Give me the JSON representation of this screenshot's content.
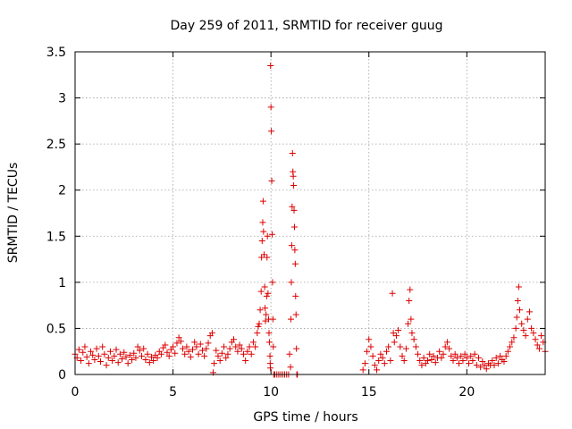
{
  "chart_data": {
    "type": "scatter",
    "title": "Day 259 of 2011, SRMTID for receiver guug",
    "xlabel": "GPS time / hours",
    "ylabel": "SRMTID / TECUs",
    "xlim": [
      0,
      24
    ],
    "ylim": [
      0,
      3.5
    ],
    "xticks": [
      0,
      5,
      10,
      15,
      20
    ],
    "xtick_labels": [
      "0",
      "5",
      "10",
      "15",
      "20"
    ],
    "yticks": [
      0,
      0.5,
      1,
      1.5,
      2,
      2.5,
      3,
      3.5
    ],
    "ytick_labels": [
      "0",
      "0.5",
      "1",
      "1.5",
      "2",
      "2.5",
      "3",
      "3.5"
    ],
    "grid": true,
    "marker": "+",
    "color": "#dd0000",
    "series": [
      {
        "name": "SRMTID",
        "points": [
          [
            0.0,
            0.22
          ],
          [
            0.1,
            0.18
          ],
          [
            0.2,
            0.27
          ],
          [
            0.3,
            0.15
          ],
          [
            0.4,
            0.24
          ],
          [
            0.5,
            0.3
          ],
          [
            0.6,
            0.19
          ],
          [
            0.7,
            0.12
          ],
          [
            0.8,
            0.25
          ],
          [
            0.9,
            0.21
          ],
          [
            1.0,
            0.16
          ],
          [
            1.1,
            0.28
          ],
          [
            1.2,
            0.2
          ],
          [
            1.3,
            0.14
          ],
          [
            1.4,
            0.3
          ],
          [
            1.5,
            0.22
          ],
          [
            1.6,
            0.1
          ],
          [
            1.7,
            0.18
          ],
          [
            1.8,
            0.25
          ],
          [
            1.9,
            0.15
          ],
          [
            2.0,
            0.2
          ],
          [
            2.1,
            0.27
          ],
          [
            2.2,
            0.13
          ],
          [
            2.3,
            0.22
          ],
          [
            2.4,
            0.17
          ],
          [
            2.5,
            0.24
          ],
          [
            2.6,
            0.19
          ],
          [
            2.7,
            0.12
          ],
          [
            2.8,
            0.21
          ],
          [
            2.9,
            0.16
          ],
          [
            3.0,
            0.23
          ],
          [
            3.1,
            0.18
          ],
          [
            3.2,
            0.3
          ],
          [
            3.3,
            0.26
          ],
          [
            3.4,
            0.2
          ],
          [
            3.5,
            0.28
          ],
          [
            3.6,
            0.16
          ],
          [
            3.7,
            0.22
          ],
          [
            3.8,
            0.13
          ],
          [
            3.9,
            0.19
          ],
          [
            4.0,
            0.15
          ],
          [
            4.1,
            0.21
          ],
          [
            4.2,
            0.18
          ],
          [
            4.3,
            0.25
          ],
          [
            4.4,
            0.22
          ],
          [
            4.5,
            0.29
          ],
          [
            4.6,
            0.32
          ],
          [
            4.7,
            0.24
          ],
          [
            4.8,
            0.2
          ],
          [
            4.9,
            0.27
          ],
          [
            5.0,
            0.3
          ],
          [
            5.1,
            0.23
          ],
          [
            5.2,
            0.34
          ],
          [
            5.3,
            0.4
          ],
          [
            5.4,
            0.36
          ],
          [
            5.5,
            0.28
          ],
          [
            5.6,
            0.22
          ],
          [
            5.7,
            0.3
          ],
          [
            5.8,
            0.25
          ],
          [
            5.9,
            0.19
          ],
          [
            6.0,
            0.27
          ],
          [
            6.1,
            0.35
          ],
          [
            6.2,
            0.3
          ],
          [
            6.3,
            0.22
          ],
          [
            6.4,
            0.33
          ],
          [
            6.5,
            0.26
          ],
          [
            6.6,
            0.2
          ],
          [
            6.7,
            0.28
          ],
          [
            6.8,
            0.34
          ],
          [
            6.9,
            0.42
          ],
          [
            7.0,
            0.45
          ],
          [
            7.05,
            0.02
          ],
          [
            7.1,
            0.12
          ],
          [
            7.2,
            0.26
          ],
          [
            7.3,
            0.2
          ],
          [
            7.4,
            0.15
          ],
          [
            7.5,
            0.23
          ],
          [
            7.6,
            0.3
          ],
          [
            7.7,
            0.18
          ],
          [
            7.8,
            0.22
          ],
          [
            7.9,
            0.28
          ],
          [
            8.0,
            0.35
          ],
          [
            8.1,
            0.38
          ],
          [
            8.2,
            0.3
          ],
          [
            8.3,
            0.25
          ],
          [
            8.4,
            0.32
          ],
          [
            8.5,
            0.28
          ],
          [
            8.6,
            0.22
          ],
          [
            8.7,
            0.15
          ],
          [
            8.8,
            0.25
          ],
          [
            8.9,
            0.3
          ],
          [
            9.0,
            0.22
          ],
          [
            9.1,
            0.35
          ],
          [
            9.2,
            0.3
          ],
          [
            9.3,
            0.45
          ],
          [
            9.35,
            0.52
          ],
          [
            9.4,
            0.55
          ],
          [
            9.45,
            0.7
          ],
          [
            9.5,
            0.9
          ],
          [
            9.52,
            1.27
          ],
          [
            9.55,
            1.45
          ],
          [
            9.58,
            1.65
          ],
          [
            9.6,
            1.88
          ],
          [
            9.62,
            1.55
          ],
          [
            9.65,
            1.3
          ],
          [
            9.68,
            0.95
          ],
          [
            9.7,
            0.72
          ],
          [
            9.72,
            0.58
          ],
          [
            9.75,
            0.65
          ],
          [
            9.78,
            0.85
          ],
          [
            9.8,
            1.27
          ],
          [
            9.82,
            1.5
          ],
          [
            9.85,
            0.88
          ],
          [
            9.88,
            0.6
          ],
          [
            9.9,
            0.45
          ],
          [
            9.92,
            0.35
          ],
          [
            9.95,
            0.2
          ],
          [
            9.96,
            0.12
          ],
          [
            9.97,
            0.07
          ],
          [
            9.98,
            3.35
          ],
          [
            10.0,
            2.9
          ],
          [
            10.02,
            2.64
          ],
          [
            10.04,
            2.1
          ],
          [
            10.06,
            1.52
          ],
          [
            10.08,
            1.0
          ],
          [
            10.1,
            0.6
          ],
          [
            10.12,
            0.3
          ],
          [
            10.15,
            0.0
          ],
          [
            10.2,
            0.0
          ],
          [
            10.3,
            0.0
          ],
          [
            10.4,
            0.0
          ],
          [
            10.5,
            0.0
          ],
          [
            10.6,
            0.0
          ],
          [
            10.7,
            0.0
          ],
          [
            10.8,
            0.0
          ],
          [
            10.9,
            0.0
          ],
          [
            10.95,
            0.22
          ],
          [
            11.0,
            0.08
          ],
          [
            11.02,
            0.6
          ],
          [
            11.04,
            1.0
          ],
          [
            11.06,
            1.4
          ],
          [
            11.08,
            1.82
          ],
          [
            11.1,
            2.4
          ],
          [
            11.12,
            2.2
          ],
          [
            11.14,
            2.15
          ],
          [
            11.16,
            2.05
          ],
          [
            11.18,
            1.78
          ],
          [
            11.2,
            1.6
          ],
          [
            11.22,
            1.35
          ],
          [
            11.24,
            1.2
          ],
          [
            11.26,
            0.85
          ],
          [
            11.28,
            0.65
          ],
          [
            11.3,
            0.28
          ],
          [
            11.32,
            0.0
          ],
          [
            11.35,
            0.0
          ],
          [
            14.7,
            0.05
          ],
          [
            14.8,
            0.12
          ],
          [
            14.9,
            0.25
          ],
          [
            15.0,
            0.38
          ],
          [
            15.1,
            0.3
          ],
          [
            15.2,
            0.2
          ],
          [
            15.3,
            0.1
          ],
          [
            15.4,
            0.05
          ],
          [
            15.5,
            0.15
          ],
          [
            15.6,
            0.22
          ],
          [
            15.7,
            0.18
          ],
          [
            15.8,
            0.12
          ],
          [
            15.9,
            0.25
          ],
          [
            16.0,
            0.3
          ],
          [
            16.1,
            0.15
          ],
          [
            16.2,
            0.88
          ],
          [
            16.25,
            0.45
          ],
          [
            16.3,
            0.35
          ],
          [
            16.4,
            0.42
          ],
          [
            16.5,
            0.48
          ],
          [
            16.6,
            0.3
          ],
          [
            16.7,
            0.2
          ],
          [
            16.8,
            0.15
          ],
          [
            16.9,
            0.28
          ],
          [
            17.0,
            0.55
          ],
          [
            17.05,
            0.8
          ],
          [
            17.1,
            0.92
          ],
          [
            17.15,
            0.6
          ],
          [
            17.2,
            0.45
          ],
          [
            17.3,
            0.38
          ],
          [
            17.4,
            0.3
          ],
          [
            17.5,
            0.22
          ],
          [
            17.6,
            0.15
          ],
          [
            17.7,
            0.1
          ],
          [
            17.8,
            0.18
          ],
          [
            17.9,
            0.12
          ],
          [
            18.0,
            0.15
          ],
          [
            18.1,
            0.22
          ],
          [
            18.2,
            0.16
          ],
          [
            18.3,
            0.2
          ],
          [
            18.4,
            0.13
          ],
          [
            18.5,
            0.18
          ],
          [
            18.6,
            0.25
          ],
          [
            18.7,
            0.18
          ],
          [
            18.8,
            0.22
          ],
          [
            18.9,
            0.3
          ],
          [
            19.0,
            0.35
          ],
          [
            19.1,
            0.28
          ],
          [
            19.2,
            0.2
          ],
          [
            19.3,
            0.15
          ],
          [
            19.4,
            0.22
          ],
          [
            19.5,
            0.18
          ],
          [
            19.6,
            0.12
          ],
          [
            19.7,
            0.2
          ],
          [
            19.8,
            0.15
          ],
          [
            19.9,
            0.22
          ],
          [
            20.0,
            0.18
          ],
          [
            20.1,
            0.12
          ],
          [
            20.2,
            0.2
          ],
          [
            20.3,
            0.15
          ],
          [
            20.4,
            0.22
          ],
          [
            20.5,
            0.1
          ],
          [
            20.6,
            0.18
          ],
          [
            20.7,
            0.08
          ],
          [
            20.8,
            0.14
          ],
          [
            20.9,
            0.1
          ],
          [
            21.0,
            0.06
          ],
          [
            21.1,
            0.12
          ],
          [
            21.2,
            0.1
          ],
          [
            21.3,
            0.15
          ],
          [
            21.4,
            0.1
          ],
          [
            21.5,
            0.18
          ],
          [
            21.6,
            0.12
          ],
          [
            21.7,
            0.2
          ],
          [
            21.8,
            0.16
          ],
          [
            21.9,
            0.14
          ],
          [
            22.0,
            0.2
          ],
          [
            22.1,
            0.25
          ],
          [
            22.2,
            0.3
          ],
          [
            22.3,
            0.35
          ],
          [
            22.4,
            0.4
          ],
          [
            22.5,
            0.5
          ],
          [
            22.55,
            0.62
          ],
          [
            22.6,
            0.8
          ],
          [
            22.65,
            0.95
          ],
          [
            22.7,
            0.7
          ],
          [
            22.8,
            0.55
          ],
          [
            22.9,
            0.48
          ],
          [
            23.0,
            0.42
          ],
          [
            23.1,
            0.6
          ],
          [
            23.2,
            0.68
          ],
          [
            23.3,
            0.5
          ],
          [
            23.4,
            0.45
          ],
          [
            23.5,
            0.38
          ],
          [
            23.6,
            0.32
          ],
          [
            23.7,
            0.28
          ],
          [
            23.8,
            0.42
          ],
          [
            23.9,
            0.35
          ],
          [
            24.0,
            0.25
          ]
        ]
      }
    ]
  }
}
